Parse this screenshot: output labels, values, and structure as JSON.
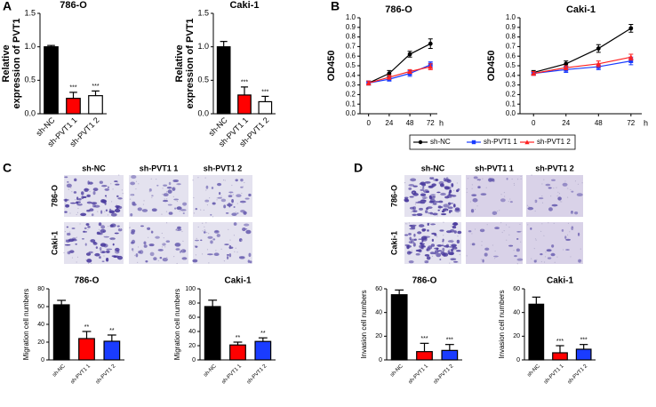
{
  "panel_labels": [
    "A",
    "B",
    "C",
    "D"
  ],
  "image_grids": [
    {
      "columns": [
        "sh-NC",
        "sh-PVT1 1",
        "sh-PVT1 2"
      ],
      "rows": [
        "786-O",
        "Caki-1"
      ]
    },
    {
      "columns": [
        "sh-NC",
        "sh-PVT1 1",
        "sh-PVT1 2"
      ],
      "rows": [
        "786-O",
        "Caki-1"
      ]
    }
  ],
  "chart_data": [
    {
      "type": "bar",
      "title": "786-O",
      "ylabel": [
        "Relative",
        "expression of PVT1"
      ],
      "categories": [
        "sh-NC",
        "sh-PVT1 1",
        "sh-PVT1 2"
      ],
      "values": [
        1.0,
        0.23,
        0.27
      ],
      "errors": [
        0.02,
        0.09,
        0.07
      ],
      "colors": [
        "#000000",
        "#ff0000",
        "#ffffff"
      ],
      "annotations": [
        null,
        "***",
        "***"
      ],
      "ylim": [
        0,
        1.5
      ],
      "yticks": [
        {
          "value": 0,
          "label": "0.0"
        },
        {
          "value": 0.5,
          "label": "0.5"
        },
        {
          "value": 1,
          "label": "1.0"
        },
        {
          "value": 1.5,
          "label": "1.5"
        }
      ]
    },
    {
      "type": "bar",
      "title": "Caki-1",
      "ylabel": [
        "Relative",
        "expression of PVT1"
      ],
      "categories": [
        "sh-NC",
        "sh-PVT1 1",
        "sh-PVT1 2"
      ],
      "values": [
        1.0,
        0.28,
        0.18
      ],
      "errors": [
        0.08,
        0.12,
        0.08
      ],
      "colors": [
        "#000000",
        "#ff0000",
        "#ffffff"
      ],
      "annotations": [
        null,
        "***",
        "***"
      ],
      "ylim": [
        0,
        1.5
      ],
      "yticks": [
        {
          "value": 0,
          "label": "0.0"
        },
        {
          "value": 0.5,
          "label": "0.5"
        },
        {
          "value": 1,
          "label": "1.0"
        },
        {
          "value": 1.5,
          "label": "1.5"
        }
      ]
    },
    {
      "type": "line",
      "title": "786-O",
      "ylabel": "OD450",
      "xlabel": "h",
      "x": [
        0,
        24,
        48,
        72
      ],
      "xlim": [
        -10,
        80
      ],
      "xticks": [
        0,
        24,
        48,
        72
      ],
      "ylim": [
        0,
        1
      ],
      "yticks": [
        {
          "value": 0,
          "label": "0.0"
        },
        {
          "value": 0.1,
          "label": "0.1"
        },
        {
          "value": 0.2,
          "label": "0.2"
        },
        {
          "value": 0.3,
          "label": "0.3"
        },
        {
          "value": 0.4,
          "label": "0.4"
        },
        {
          "value": 0.5,
          "label": "0.5"
        },
        {
          "value": 0.6,
          "label": "0.6"
        },
        {
          "value": 0.7,
          "label": "0.7"
        },
        {
          "value": 0.8,
          "label": "0.8"
        },
        {
          "value": 0.9,
          "label": "0.9"
        },
        {
          "value": 1,
          "label": "1.0"
        }
      ],
      "legend": "bottom",
      "series": [
        {
          "name": "sh-NC",
          "color": "#000000",
          "marker": "circle",
          "values": [
            0.32,
            0.42,
            0.62,
            0.73
          ],
          "errors": [
            0.02,
            0.03,
            0.03,
            0.05
          ]
        },
        {
          "name": "sh-PVT1 1",
          "color": "#1a3cff",
          "marker": "square",
          "values": [
            0.32,
            0.36,
            0.42,
            0.51
          ],
          "errors": [
            0.02,
            0.02,
            0.03,
            0.03
          ]
        },
        {
          "name": "sh-PVT1 2",
          "color": "#ff2020",
          "marker": "triangle",
          "values": [
            0.32,
            0.38,
            0.44,
            0.49
          ],
          "errors": [
            0.02,
            0.02,
            0.02,
            0.03
          ]
        }
      ]
    },
    {
      "type": "line",
      "title": "Caki-1",
      "ylabel": "OD450",
      "xlabel": "h",
      "x": [
        0,
        24,
        48,
        72
      ],
      "xlim": [
        -10,
        80
      ],
      "xticks": [
        0,
        24,
        48,
        72
      ],
      "ylim": [
        0,
        1
      ],
      "yticks": [
        {
          "value": 0,
          "label": "0.0"
        },
        {
          "value": 0.1,
          "label": "0.1"
        },
        {
          "value": 0.2,
          "label": "0.2"
        },
        {
          "value": 0.3,
          "label": "0.3"
        },
        {
          "value": 0.4,
          "label": "0.4"
        },
        {
          "value": 0.5,
          "label": "0.5"
        },
        {
          "value": 0.6,
          "label": "0.6"
        },
        {
          "value": 0.7,
          "label": "0.7"
        },
        {
          "value": 0.8,
          "label": "0.8"
        },
        {
          "value": 0.9,
          "label": "0.9"
        },
        {
          "value": 1,
          "label": "1.0"
        }
      ],
      "series": [
        {
          "name": "sh-NC",
          "color": "#000000",
          "marker": "circle",
          "values": [
            0.43,
            0.52,
            0.68,
            0.89
          ],
          "errors": [
            0.02,
            0.03,
            0.04,
            0.04
          ]
        },
        {
          "name": "sh-PVT1 1",
          "color": "#1a3cff",
          "marker": "square",
          "values": [
            0.42,
            0.46,
            0.49,
            0.55
          ],
          "errors": [
            0.02,
            0.03,
            0.03,
            0.04
          ]
        },
        {
          "name": "sh-PVT1 2",
          "color": "#ff2020",
          "marker": "triangle",
          "values": [
            0.42,
            0.48,
            0.52,
            0.59
          ],
          "errors": [
            0.02,
            0.02,
            0.03,
            0.03
          ]
        }
      ]
    },
    {
      "type": "bar",
      "title": "786-O",
      "ylabel": "Migration cell numbers",
      "categories": [
        "sh-NC",
        "sh-PVT1 1",
        "sh-PVT1 2"
      ],
      "values": [
        62,
        24,
        21
      ],
      "errors": [
        5,
        8,
        7
      ],
      "colors": [
        "#000000",
        "#ff0000",
        "#1a3cff"
      ],
      "annotations": [
        null,
        "**",
        "**"
      ],
      "ylim": [
        0,
        80
      ],
      "yticks": [
        0,
        20,
        40,
        60,
        80
      ]
    },
    {
      "type": "bar",
      "title": "Caki-1",
      "ylabel": "Migration cell numbers",
      "categories": [
        "sh-NC",
        "sh-PVT1 1",
        "sh-PVT1 2"
      ],
      "values": [
        75,
        21,
        26
      ],
      "errors": [
        9,
        4,
        5
      ],
      "colors": [
        "#000000",
        "#ff0000",
        "#1a3cff"
      ],
      "annotations": [
        null,
        "**",
        "**"
      ],
      "ylim": [
        0,
        100
      ],
      "yticks": [
        0,
        20,
        40,
        60,
        80,
        100
      ]
    },
    {
      "type": "bar",
      "title": "786-O",
      "ylabel": "Invasion cell numbers",
      "categories": [
        "sh-NC",
        "sh-PVT1 1",
        "sh-PVT1 2"
      ],
      "values": [
        55,
        7,
        8
      ],
      "errors": [
        4,
        7,
        5
      ],
      "colors": [
        "#000000",
        "#ff0000",
        "#1a3cff"
      ],
      "annotations": [
        null,
        "***",
        "***"
      ],
      "ylim": [
        0,
        60
      ],
      "yticks": [
        0,
        20,
        40,
        60
      ]
    },
    {
      "type": "bar",
      "title": "Caki-1",
      "ylabel": "Invasion cell numbers",
      "categories": [
        "sh-NC",
        "sh-PVT1 1",
        "sh-PVT1 2"
      ],
      "values": [
        47,
        6,
        9
      ],
      "errors": [
        6,
        6,
        4
      ],
      "colors": [
        "#000000",
        "#ff0000",
        "#1a3cff"
      ],
      "annotations": [
        null,
        "***",
        "***"
      ],
      "ylim": [
        0,
        60
      ],
      "yticks": [
        0,
        20,
        40,
        60
      ]
    }
  ]
}
